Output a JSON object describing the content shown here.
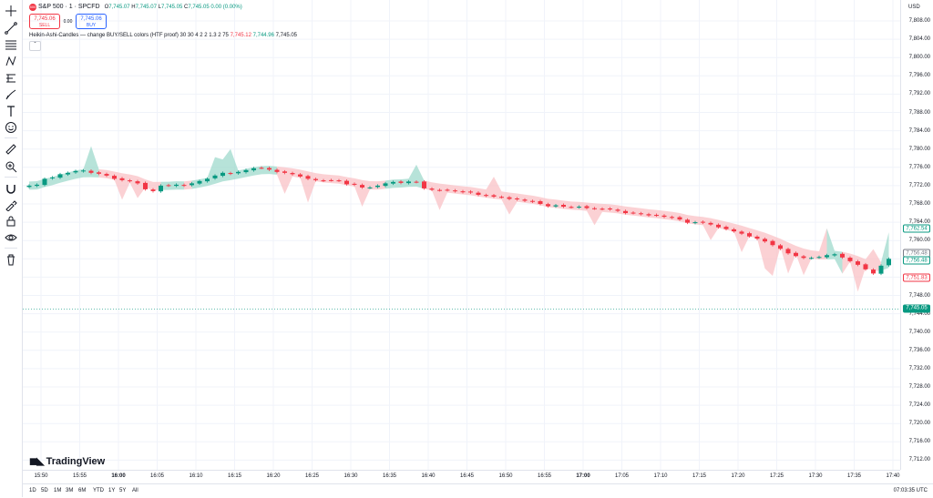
{
  "symbol": {
    "badge": "500",
    "title": "S&P 500 · 1 · SPCFD",
    "ohlc": {
      "o_label": "O",
      "o": "7,745.07",
      "h_label": "H",
      "h": "7,745.07",
      "l_label": "L",
      "l": "7,745.05",
      "c_label": "C",
      "c": "7,745.05",
      "change": "0.00 (0.00%)"
    }
  },
  "trade": {
    "sell_price": "7,745.06",
    "sell_label": "SELL",
    "spread": "0.00",
    "buy_price": "7,745.06",
    "buy_label": "BUY"
  },
  "indicator": {
    "name": "Heikin-Ashi-Candles — change BUY/SELL colors (HTF proof)",
    "params": "30 30 4 2 2 1.3 2 75",
    "v1": "7,745.12",
    "v2": "7,744.96",
    "v3": "7,745.05",
    "collapse_glyph": "ˇ"
  },
  "logo_text": "TradingView",
  "currency": "USD",
  "price_axis": {
    "labels": [
      "7,808.00",
      "7,804.00",
      "7,800.00",
      "7,796.00",
      "7,792.00",
      "7,788.00",
      "7,784.00",
      "7,780.00",
      "7,776.00",
      "7,772.00",
      "7,768.00",
      "7,764.00",
      "7,760.00",
      "7,756.00",
      "7,752.00",
      "7,748.00",
      "7,744.00",
      "7,740.00",
      "7,736.00",
      "7,732.00",
      "7,728.00",
      "7,724.00",
      "7,720.00",
      "7,716.00",
      "7,712.00"
    ],
    "tags": [
      {
        "text": "7,762.54",
        "value": 7762.54,
        "color": "#089981",
        "filled": false
      },
      {
        "text": "7,756.48",
        "value": 7757.3,
        "color": "#787b86",
        "filled": false
      },
      {
        "text": "7,756.48",
        "value": 7755.7,
        "color": "#089981",
        "filled": false
      },
      {
        "text": "7,751.83",
        "value": 7751.83,
        "color": "#f23645",
        "filled": false
      },
      {
        "text": "7,745.05",
        "value": 7745.05,
        "color": "#089981",
        "filled": true
      }
    ]
  },
  "time_axis": {
    "labels": [
      {
        "t": "15:50",
        "bold": false
      },
      {
        "t": "15:55",
        "bold": false
      },
      {
        "t": "16:00",
        "bold": true
      },
      {
        "t": "16:05",
        "bold": false
      },
      {
        "t": "16:10",
        "bold": false
      },
      {
        "t": "16:15",
        "bold": false
      },
      {
        "t": "16:20",
        "bold": false
      },
      {
        "t": "16:25",
        "bold": false
      },
      {
        "t": "16:30",
        "bold": false
      },
      {
        "t": "16:35",
        "bold": false
      },
      {
        "t": "16:40",
        "bold": false
      },
      {
        "t": "16:45",
        "bold": false
      },
      {
        "t": "16:50",
        "bold": false
      },
      {
        "t": "16:55",
        "bold": false
      },
      {
        "t": "17:00",
        "bold": true
      },
      {
        "t": "17:05",
        "bold": false
      },
      {
        "t": "17:10",
        "bold": false
      },
      {
        "t": "17:15",
        "bold": false
      },
      {
        "t": "17:20",
        "bold": false
      },
      {
        "t": "17:25",
        "bold": false
      },
      {
        "t": "17:30",
        "bold": false
      },
      {
        "t": "17:35",
        "bold": false
      },
      {
        "t": "17:40",
        "bold": false
      }
    ]
  },
  "ranges": [
    "1D",
    "5D",
    "1M",
    "3M",
    "6M",
    "YTD",
    "1Y",
    "5Y",
    "All"
  ],
  "clock": "07:03:35 UTC",
  "toolbar_icons": [
    "crosshair-icon",
    "trend-line-icon",
    "fib-icon",
    "pattern-icon",
    "forecast-icon",
    "brush-icon",
    "text-icon",
    "emoji-icon",
    "ruler-icon",
    "zoom-icon",
    "magnet-icon",
    "lock-drawing-icon",
    "lock-icon",
    "eye-icon",
    "trash-icon"
  ],
  "colors": {
    "up": "#089981",
    "down": "#f23645",
    "up_cloud": "#9fd9cc",
    "down_cloud": "#f9c2c5"
  },
  "chart_data": {
    "type": "candlestick",
    "ylim": [
      7710,
      7810
    ],
    "x": [
      "15:50",
      "15:51",
      "15:52",
      "15:53",
      "15:54",
      "15:55",
      "15:56",
      "15:57",
      "15:58",
      "15:59",
      "16:00",
      "16:01",
      "16:02",
      "16:03",
      "16:04",
      "16:05",
      "16:06",
      "16:07",
      "16:08",
      "16:09",
      "16:10",
      "16:11",
      "16:12",
      "16:13",
      "16:14",
      "16:15",
      "16:16",
      "16:17",
      "16:18",
      "16:19",
      "16:20",
      "16:21",
      "16:22",
      "16:23",
      "16:24",
      "16:25",
      "16:26",
      "16:27",
      "16:28",
      "16:29",
      "16:30",
      "16:31",
      "16:32",
      "16:33",
      "16:34",
      "16:35",
      "16:36",
      "16:37",
      "16:38",
      "16:39",
      "16:40",
      "16:41",
      "16:42",
      "16:43",
      "16:44",
      "16:45",
      "16:46",
      "16:47",
      "16:48",
      "16:49",
      "16:50",
      "16:51",
      "16:52",
      "16:53",
      "16:54",
      "16:55",
      "16:56",
      "16:57",
      "16:58",
      "16:59",
      "17:00",
      "17:01",
      "17:02",
      "17:03",
      "17:04",
      "17:05",
      "17:06",
      "17:07",
      "17:08",
      "17:09",
      "17:10",
      "17:11",
      "17:12",
      "17:13",
      "17:14",
      "17:15",
      "17:16",
      "17:17",
      "17:18",
      "17:19",
      "17:20",
      "17:21",
      "17:22",
      "17:23",
      "17:24",
      "17:25",
      "17:26",
      "17:27",
      "17:28",
      "17:29",
      "17:30",
      "17:31",
      "17:32",
      "17:33",
      "17:34",
      "17:35",
      "17:36",
      "17:37",
      "17:38",
      "17:39",
      "17:40",
      "17:41"
    ],
    "close": [
      7772.0,
      7772.2,
      7773.5,
      7773.8,
      7774.5,
      7774.8,
      7775.2,
      7775.3,
      7774.8,
      7774.6,
      7774.2,
      7773.5,
      7773.2,
      7773.0,
      7772.5,
      7771.2,
      7770.8,
      7772.0,
      7772.0,
      7772.2,
      7772.0,
      7772.5,
      7773.0,
      7773.5,
      7774.2,
      7774.8,
      7774.6,
      7775.0,
      7775.4,
      7775.8,
      7775.9,
      7775.5,
      7775.0,
      7774.8,
      7774.5,
      7774.0,
      7773.5,
      7773.2,
      7773.1,
      7773.2,
      7773.1,
      7772.3,
      7772.2,
      7771.6,
      7771.6,
      7772.0,
      7772.5,
      7772.8,
      7772.6,
      7772.9,
      7772.8,
      7771.4,
      7771.1,
      7771.0,
      7771.0,
      7770.8,
      7770.6,
      7770.5,
      7770.0,
      7769.8,
      7769.6,
      7769.5,
      7769.1,
      7769.0,
      7768.7,
      7768.5,
      7768.0,
      7767.5,
      7767.7,
      7767.4,
      7767.3,
      7767.4,
      7767.1,
      7767.0,
      7766.9,
      7766.8,
      7766.5,
      7766.0,
      7766.0,
      7765.8,
      7765.5,
      7765.5,
      7765.2,
      7765.0,
      7764.6,
      7763.9,
      7764.0,
      7763.9,
      7763.5,
      7762.9,
      7762.5,
      7762.0,
      7761.5,
      7760.9,
      7760.4,
      7759.8,
      7759.0,
      7758.2,
      7757.2,
      7756.6,
      7756.2,
      7756.2,
      7756.4,
      7756.8,
      7757.0,
      7756.3,
      7755.5,
      7754.7,
      7753.7,
      7752.8,
      7754.5,
      7756.0
    ]
  }
}
